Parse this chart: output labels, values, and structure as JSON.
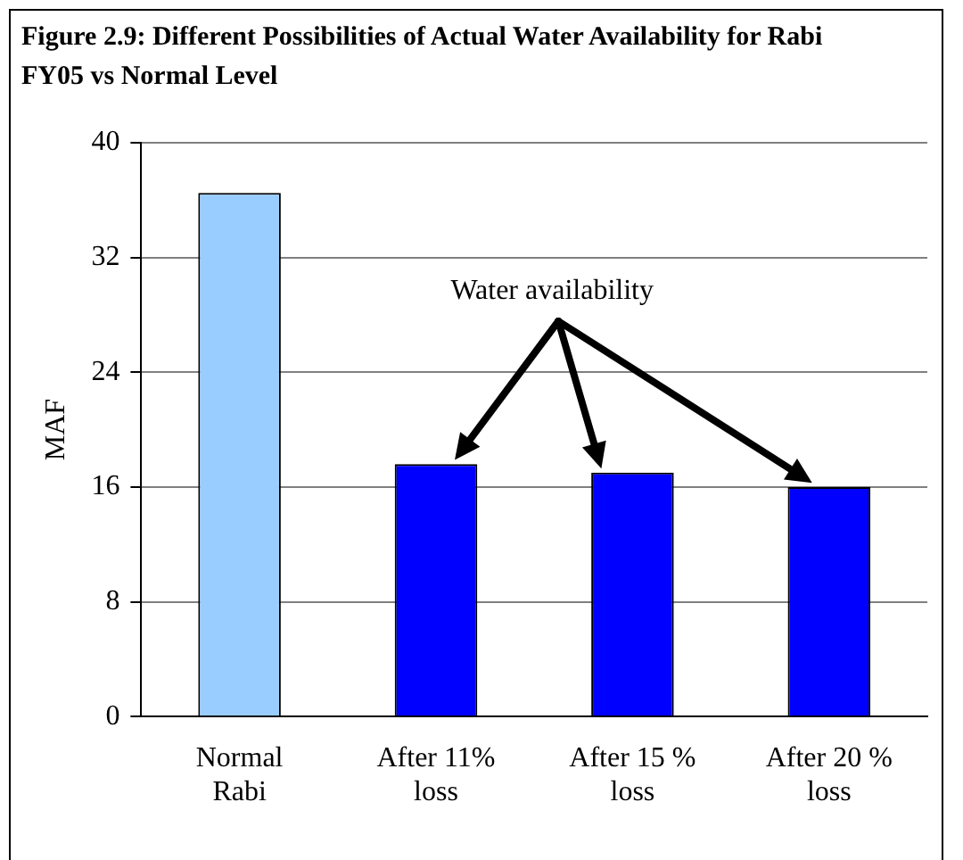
{
  "chart_data": {
    "type": "bar",
    "title": "Figure 2.9: Different Possibilities of Actual  Water Availability for Rabi FY05 vs Normal Level",
    "ylabel": "MAF",
    "categories": [
      "Normal Rabi",
      "After 11% loss",
      "After 15 % loss",
      "After 20 % loss"
    ],
    "values": [
      36.5,
      17.6,
      17.0,
      16.0
    ],
    "colors": [
      "#99ccff",
      "#0000ff",
      "#0000ff",
      "#0000ff"
    ],
    "ylim": [
      0,
      40
    ],
    "yticks": [
      0,
      8,
      16,
      24,
      32,
      40
    ],
    "grid": "y",
    "legend": false,
    "annotations": [
      "Water availability"
    ]
  }
}
